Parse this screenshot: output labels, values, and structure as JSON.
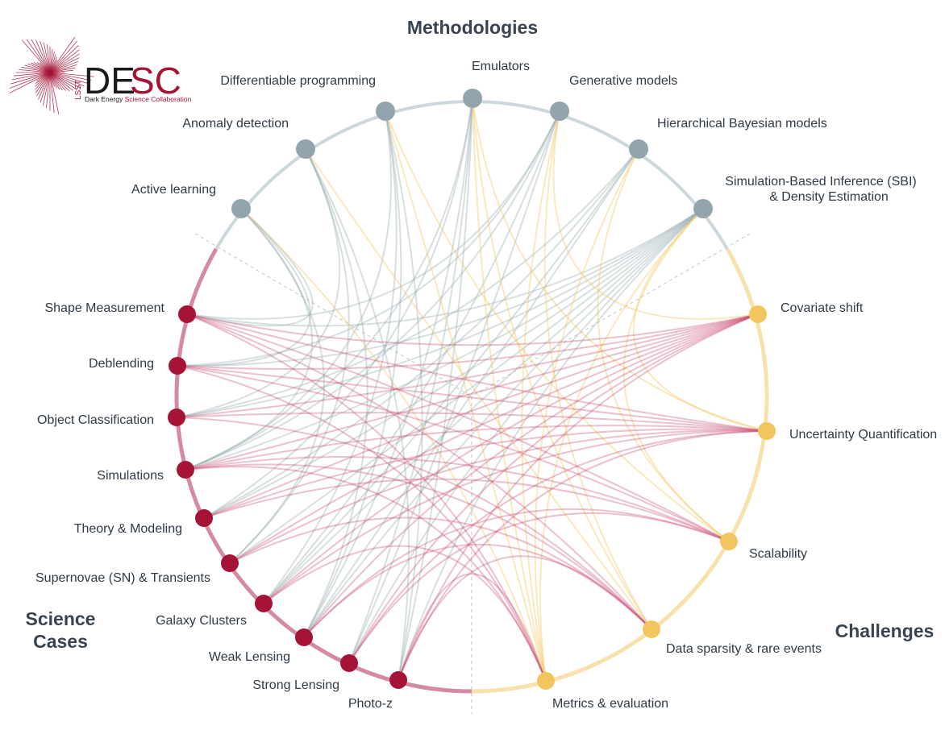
{
  "logo": {
    "side": "LSST",
    "word_de": "DE",
    "word_sc": "SC",
    "sub_a": "Dark Energy ",
    "sub_b": "Science Collaboration"
  },
  "groups": {
    "methodologies": "Methodologies",
    "science_line1": "Science",
    "science_line2": "Cases",
    "challenges": "Challenges"
  },
  "colors": {
    "methodology": "#93a5ac",
    "science": "#a51437",
    "challenge": "#f3c55f",
    "ring_methodology": "#ccd8dc",
    "ring_science": "#d48aa0",
    "ring_challenge": "#f8e2ac"
  },
  "methodologies": [
    "Active learning",
    "Anomaly detection",
    "Differentiable programming",
    "Emulators",
    "Generative models",
    "Hierarchical Bayesian models",
    "Simulation-Based Inference (SBI)",
    "& Density Estimation"
  ],
  "science_cases": [
    "Shape Measurement",
    "Deblending",
    "Object Classification",
    "Simulations",
    "Theory & Modeling",
    "Supernovae (SN) & Transients",
    "Galaxy Clusters",
    "Weak Lensing",
    "Strong Lensing",
    "Photo-z"
  ],
  "challenges": [
    "Covariate shift",
    "Uncertainty Quantification",
    "Scalability",
    "Data sparsity & rare events",
    "Metrics & evaluation"
  ]
}
